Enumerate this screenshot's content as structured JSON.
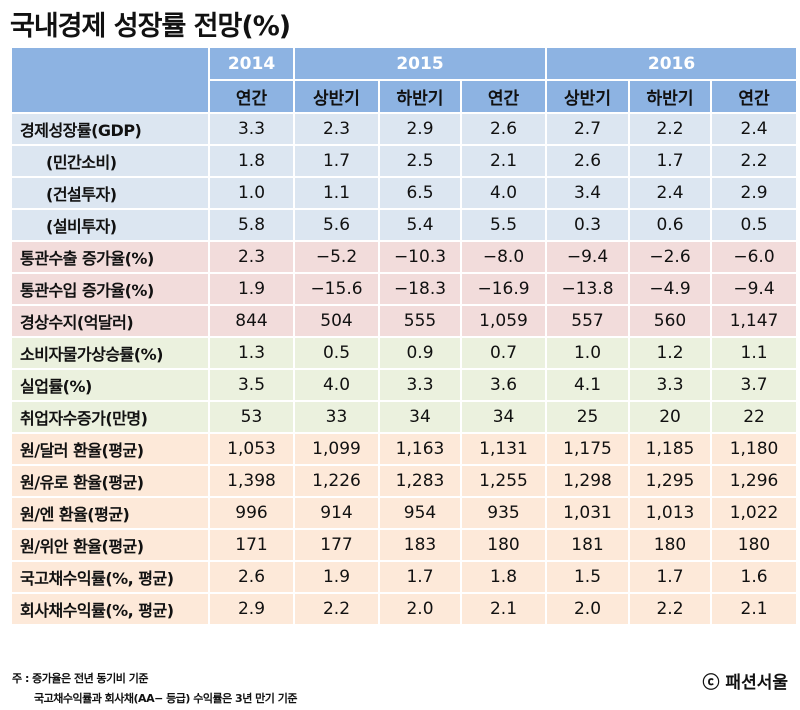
{
  "title": "국내경제 성장률 전망(%)",
  "colors": {
    "header": "#8db3e2",
    "group_gdp": "#dce6f1",
    "group_trade": "#f2dcdb",
    "group_price": "#ebf1de",
    "group_fx": "#fde9d9"
  },
  "chart_data": {
    "type": "table",
    "title": "국내경제 성장률 전망(%)",
    "years": [
      {
        "label": "2014",
        "span": 1
      },
      {
        "label": "2015",
        "span": 3
      },
      {
        "label": "2016",
        "span": 3
      }
    ],
    "columns": [
      "연간",
      "상반기",
      "하반기",
      "연간",
      "상반기",
      "하반기",
      "연간"
    ],
    "rows": [
      {
        "label": "경제성장률(GDP)",
        "group": 0,
        "indent": false,
        "values": [
          "3.3",
          "2.3",
          "2.9",
          "2.6",
          "2.7",
          "2.2",
          "2.4"
        ]
      },
      {
        "label": "(민간소비)",
        "group": 0,
        "indent": true,
        "values": [
          "1.8",
          "1.7",
          "2.5",
          "2.1",
          "2.6",
          "1.7",
          "2.2"
        ]
      },
      {
        "label": "(건설투자)",
        "group": 0,
        "indent": true,
        "values": [
          "1.0",
          "1.1",
          "6.5",
          "4.0",
          "3.4",
          "2.4",
          "2.9"
        ]
      },
      {
        "label": "(설비투자)",
        "group": 0,
        "indent": true,
        "values": [
          "5.8",
          "5.6",
          "5.4",
          "5.5",
          "0.3",
          "0.6",
          "0.5"
        ]
      },
      {
        "label": "통관수출 증가율(%)",
        "group": 1,
        "indent": false,
        "values": [
          "2.3",
          "−5.2",
          "−10.3",
          "−8.0",
          "−9.4",
          "−2.6",
          "−6.0"
        ]
      },
      {
        "label": "통관수입 증가율(%)",
        "group": 1,
        "indent": false,
        "values": [
          "1.9",
          "−15.6",
          "−18.3",
          "−16.9",
          "−13.8",
          "−4.9",
          "−9.4"
        ]
      },
      {
        "label": "경상수지(억달러)",
        "group": 1,
        "indent": false,
        "values": [
          "844",
          "504",
          "555",
          "1,059",
          "557",
          "560",
          "1,147"
        ]
      },
      {
        "label": "소비자물가상승률(%)",
        "group": 2,
        "indent": false,
        "values": [
          "1.3",
          "0.5",
          "0.9",
          "0.7",
          "1.0",
          "1.2",
          "1.1"
        ]
      },
      {
        "label": "실업률(%)",
        "group": 2,
        "indent": false,
        "values": [
          "3.5",
          "4.0",
          "3.3",
          "3.6",
          "4.1",
          "3.3",
          "3.7"
        ]
      },
      {
        "label": "취업자수증가(만명)",
        "group": 2,
        "indent": false,
        "values": [
          "53",
          "33",
          "34",
          "34",
          "25",
          "20",
          "22"
        ]
      },
      {
        "label": "원/달러 환율(평균)",
        "group": 3,
        "indent": false,
        "values": [
          "1,053",
          "1,099",
          "1,163",
          "1,131",
          "1,175",
          "1,185",
          "1,180"
        ]
      },
      {
        "label": "원/유로 환율(평균)",
        "group": 3,
        "indent": false,
        "values": [
          "1,398",
          "1,226",
          "1,283",
          "1,255",
          "1,298",
          "1,295",
          "1,296"
        ]
      },
      {
        "label": "원/엔 환율(평균)",
        "group": 3,
        "indent": false,
        "values": [
          "996",
          "914",
          "954",
          "935",
          "1,031",
          "1,013",
          "1,022"
        ]
      },
      {
        "label": "원/위안 환율(평균)",
        "group": 3,
        "indent": false,
        "values": [
          "171",
          "177",
          "183",
          "180",
          "181",
          "180",
          "180"
        ]
      },
      {
        "label": "국고채수익률(%, 평균)",
        "group": 3,
        "indent": false,
        "values": [
          "2.6",
          "1.9",
          "1.7",
          "1.8",
          "1.5",
          "1.7",
          "1.6"
        ]
      },
      {
        "label": "회사채수익률(%, 평균)",
        "group": 3,
        "indent": false,
        "values": [
          "2.9",
          "2.2",
          "2.0",
          "2.1",
          "2.0",
          "2.2",
          "2.1"
        ]
      }
    ]
  },
  "notes": [
    "주 : 증가율은 전년 동기비 기준",
    "국고채수익률과 회사채(AA− 등급) 수익률은 3년 만기 기준"
  ],
  "credit": "ⓒ 패션서울"
}
